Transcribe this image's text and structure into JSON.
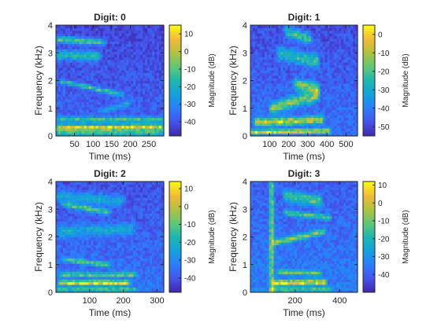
{
  "chart_data": [
    {
      "type": "heatmap",
      "title": "Digit: 0",
      "xlabel": "Time (ms)",
      "ylabel": "Frequency (kHz)",
      "colorbar_label": "Magnitude (dB)",
      "xlim": [
        0,
        290
      ],
      "ylim": [
        0,
        4
      ],
      "clim": [
        -48,
        15
      ],
      "xticks": [
        50,
        100,
        150,
        200,
        250
      ],
      "yticks": [
        0,
        1,
        2,
        3,
        4
      ],
      "cticks": [
        10,
        0,
        -10,
        -20,
        -30,
        -40
      ],
      "floor": -36,
      "ridges": [
        {
          "f0": 3.5,
          "f1": 3.4,
          "t0": 0,
          "t1": 130,
          "amp": 30,
          "w": 0.12
        },
        {
          "f0": 2.95,
          "f1": 2.9,
          "t0": 0,
          "t1": 120,
          "amp": 24,
          "w": 0.18
        },
        {
          "f0": 2.0,
          "f1": 1.5,
          "t0": 10,
          "t1": 180,
          "amp": 26,
          "w": 0.08
        },
        {
          "f0": 0.9,
          "f1": 1.2,
          "t0": 120,
          "t1": 200,
          "amp": 16,
          "w": 0.08
        },
        {
          "f0": 0.6,
          "f1": 0.6,
          "t0": 0,
          "t1": 290,
          "amp": 24,
          "w": 0.1
        },
        {
          "f0": 0.3,
          "f1": 0.32,
          "t0": 0,
          "t1": 290,
          "amp": 44,
          "w": 0.11
        },
        {
          "f0": 0.1,
          "f1": 0.1,
          "t0": 0,
          "t1": 290,
          "amp": 32,
          "w": 0.06
        }
      ]
    },
    {
      "type": "heatmap",
      "title": "Digit: 1",
      "xlabel": "Time (ms)",
      "ylabel": "Frequency (kHz)",
      "colorbar_label": "Magnitude (dB)",
      "xlim": [
        0,
        560
      ],
      "ylim": [
        0,
        4
      ],
      "clim": [
        -55,
        5
      ],
      "xticks": [
        100,
        200,
        300,
        400,
        500
      ],
      "yticks": [
        0,
        1,
        2,
        3,
        4
      ],
      "cticks": [
        0,
        -10,
        -20,
        -30,
        -40,
        -50
      ],
      "floor": -42,
      "ridges": [
        {
          "f0": 3.8,
          "f1": 3.5,
          "t0": 180,
          "t1": 320,
          "amp": 26,
          "w": 0.2
        },
        {
          "f0": 3.0,
          "f1": 2.7,
          "t0": 140,
          "t1": 360,
          "amp": 22,
          "w": 0.25
        },
        {
          "f0": 1.9,
          "f1": 1.7,
          "t0": 230,
          "t1": 360,
          "amp": 30,
          "w": 0.2
        },
        {
          "f0": 1.0,
          "f1": 1.5,
          "t0": 100,
          "t1": 360,
          "amp": 30,
          "w": 0.2
        },
        {
          "f0": 0.5,
          "f1": 0.6,
          "t0": 20,
          "t1": 380,
          "amp": 36,
          "w": 0.14
        },
        {
          "f0": 0.15,
          "f1": 0.2,
          "t0": 0,
          "t1": 420,
          "amp": 42,
          "w": 0.08
        }
      ]
    },
    {
      "type": "heatmap",
      "title": "Digit: 2",
      "xlabel": "Time (ms)",
      "ylabel": "Frequency (kHz)",
      "colorbar_label": "Magnitude (dB)",
      "xlim": [
        0,
        320
      ],
      "ylim": [
        0,
        4
      ],
      "clim": [
        -48,
        14
      ],
      "xticks": [
        100,
        200,
        300
      ],
      "yticks": [
        0,
        1,
        2,
        3,
        4
      ],
      "cticks": [
        10,
        0,
        -10,
        -20,
        -30,
        -40
      ],
      "floor": -34,
      "ridges": [
        {
          "f0": 3.2,
          "f1": 2.9,
          "t0": 20,
          "t1": 160,
          "amp": 28,
          "w": 0.1
        },
        {
          "f0": 3.5,
          "f1": 3.3,
          "t0": 0,
          "t1": 200,
          "amp": 16,
          "w": 0.2
        },
        {
          "f0": 2.2,
          "f1": 2.3,
          "t0": 0,
          "t1": 230,
          "amp": 16,
          "w": 0.2
        },
        {
          "f0": 1.2,
          "f1": 1.0,
          "t0": 20,
          "t1": 160,
          "amp": 26,
          "w": 0.09
        },
        {
          "f0": 0.65,
          "f1": 0.65,
          "t0": 10,
          "t1": 240,
          "amp": 30,
          "w": 0.07
        },
        {
          "f0": 0.35,
          "f1": 0.35,
          "t0": 10,
          "t1": 220,
          "amp": 44,
          "w": 0.09
        },
        {
          "f0": 0.1,
          "f1": 0.1,
          "t0": 0,
          "t1": 240,
          "amp": 32,
          "w": 0.06
        }
      ]
    },
    {
      "type": "heatmap",
      "title": "Digit: 3",
      "xlabel": "Time (ms)",
      "ylabel": "Frequency (kHz)",
      "colorbar_label": "Magnitude (dB)",
      "xlim": [
        0,
        480
      ],
      "ylim": [
        0,
        4
      ],
      "clim": [
        -50,
        12
      ],
      "xticks": [
        200,
        400
      ],
      "yticks": [
        0,
        1,
        2,
        3,
        4
      ],
      "cticks": [
        10,
        0,
        -10,
        -20,
        -30,
        -40
      ],
      "floor": -34,
      "ridges": [
        {
          "f0": 3.5,
          "f1": 3.3,
          "t0": 150,
          "t1": 320,
          "amp": 26,
          "w": 0.2
        },
        {
          "f0": 2.9,
          "f1": 2.7,
          "t0": 150,
          "t1": 360,
          "amp": 24,
          "w": 0.1
        },
        {
          "f0": 1.8,
          "f1": 2.2,
          "t0": 100,
          "t1": 330,
          "amp": 30,
          "w": 0.11
        },
        {
          "f0": 0.75,
          "f1": 0.7,
          "t0": 120,
          "t1": 320,
          "amp": 26,
          "w": 0.08
        },
        {
          "f0": 0.35,
          "f1": 0.38,
          "t0": 100,
          "t1": 340,
          "amp": 40,
          "w": 0.1
        },
        {
          "f0": 0.1,
          "f1": 0.1,
          "t0": 90,
          "t1": 360,
          "amp": 30,
          "w": 0.06
        }
      ],
      "bursts": [
        {
          "t": 95,
          "amp": 34,
          "w": 10
        }
      ]
    }
  ]
}
